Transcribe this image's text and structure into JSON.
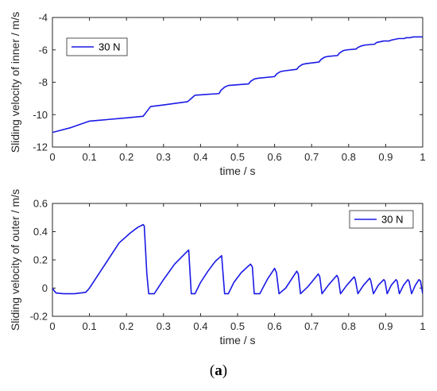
{
  "caption": {
    "paren_open": "(",
    "letter": "a",
    "paren_close": ")"
  },
  "colors": {
    "series": "#1a1ae6",
    "axis": "#262626",
    "background": "#ffffff",
    "legend_border": "#262626"
  },
  "chart_data": [
    {
      "type": "line",
      "title": "",
      "xlabel": "time / s",
      "ylabel": "Sliding velocity of inner / m/s",
      "xlim": [
        0,
        1
      ],
      "ylim": [
        -12,
        -4
      ],
      "xticks": [
        0,
        0.1,
        0.2,
        0.3,
        0.4,
        0.5,
        0.6,
        0.7,
        0.8,
        0.9,
        1
      ],
      "xtick_labels": [
        "0",
        "0.1",
        "0.2",
        "0.3",
        "0.4",
        "0.5",
        "0.6",
        "0.7",
        "0.8",
        "0.9",
        "1"
      ],
      "yticks": [
        -12,
        -10,
        -8,
        -6,
        -4
      ],
      "ytick_labels": [
        "-12",
        "-10",
        "-8",
        "-6",
        "-4"
      ],
      "grid": false,
      "legend_position": "top-left",
      "series": [
        {
          "name": "30 N",
          "x": [
            0,
            0.05,
            0.1,
            0.15,
            0.2,
            0.245,
            0.255,
            0.265,
            0.3,
            0.365,
            0.375,
            0.385,
            0.45,
            0.455,
            0.465,
            0.475,
            0.53,
            0.535,
            0.545,
            0.555,
            0.6,
            0.605,
            0.615,
            0.625,
            0.66,
            0.665,
            0.675,
            0.685,
            0.72,
            0.725,
            0.735,
            0.745,
            0.77,
            0.775,
            0.785,
            0.795,
            0.82,
            0.825,
            0.835,
            0.845,
            0.87,
            0.875,
            0.885,
            0.895,
            0.91,
            0.915,
            0.925,
            0.935,
            0.95,
            0.955,
            0.965,
            0.975,
            0.985,
            0.99,
            1.0
          ],
          "y": [
            -11.1,
            -10.8,
            -10.4,
            -10.3,
            -10.2,
            -10.1,
            -9.8,
            -9.5,
            -9.4,
            -9.2,
            -9.0,
            -8.8,
            -8.7,
            -8.5,
            -8.3,
            -8.2,
            -8.1,
            -7.95,
            -7.8,
            -7.75,
            -7.65,
            -7.5,
            -7.35,
            -7.3,
            -7.2,
            -7.05,
            -6.9,
            -6.85,
            -6.75,
            -6.6,
            -6.45,
            -6.4,
            -6.35,
            -6.2,
            -6.05,
            -6.0,
            -5.95,
            -5.85,
            -5.75,
            -5.7,
            -5.65,
            -5.55,
            -5.5,
            -5.45,
            -5.45,
            -5.4,
            -5.35,
            -5.3,
            -5.3,
            -5.25,
            -5.25,
            -5.2,
            -5.2,
            -5.2,
            -5.2
          ]
        }
      ]
    },
    {
      "type": "line",
      "title": "",
      "xlabel": "time / s",
      "ylabel": "Sliding velocity of outer / m/s",
      "xlim": [
        0,
        1
      ],
      "ylim": [
        -0.2,
        0.6
      ],
      "xticks": [
        0,
        0.1,
        0.2,
        0.3,
        0.4,
        0.5,
        0.6,
        0.7,
        0.8,
        0.9,
        1
      ],
      "xtick_labels": [
        "0",
        "0.1",
        "0.2",
        "0.3",
        "0.4",
        "0.5",
        "0.6",
        "0.7",
        "0.8",
        "0.9",
        "1"
      ],
      "yticks": [
        -0.2,
        0,
        0.2,
        0.4,
        0.6
      ],
      "ytick_labels": [
        "-0.2",
        "0",
        "0.2",
        "0.4",
        "0.6"
      ],
      "grid": false,
      "legend_position": "top-right",
      "series": [
        {
          "name": "30 N",
          "x": [
            0,
            0.005,
            0.01,
            0.03,
            0.06,
            0.09,
            0.1,
            0.12,
            0.15,
            0.18,
            0.21,
            0.23,
            0.245,
            0.248,
            0.255,
            0.26,
            0.275,
            0.3,
            0.33,
            0.36,
            0.368,
            0.375,
            0.385,
            0.4,
            0.42,
            0.44,
            0.457,
            0.465,
            0.475,
            0.49,
            0.51,
            0.535,
            0.54,
            0.545,
            0.56,
            0.58,
            0.6,
            0.605,
            0.612,
            0.63,
            0.66,
            0.664,
            0.67,
            0.69,
            0.718,
            0.722,
            0.728,
            0.745,
            0.768,
            0.772,
            0.778,
            0.795,
            0.815,
            0.818,
            0.825,
            0.84,
            0.857,
            0.86,
            0.867,
            0.88,
            0.895,
            0.898,
            0.904,
            0.915,
            0.928,
            0.931,
            0.937,
            0.948,
            0.96,
            0.963,
            0.97,
            0.98,
            0.99,
            0.994,
            1.0
          ],
          "y": [
            0.0,
            -0.02,
            -0.035,
            -0.04,
            -0.04,
            -0.03,
            0.0,
            0.08,
            0.2,
            0.32,
            0.39,
            0.43,
            0.45,
            0.44,
            0.1,
            -0.04,
            -0.04,
            0.06,
            0.17,
            0.25,
            0.27,
            -0.04,
            -0.04,
            0.04,
            0.12,
            0.19,
            0.23,
            -0.04,
            -0.04,
            0.04,
            0.11,
            0.17,
            0.15,
            -0.04,
            -0.04,
            0.06,
            0.14,
            0.11,
            -0.04,
            0.0,
            0.12,
            0.1,
            -0.04,
            0.01,
            0.1,
            0.08,
            -0.04,
            0.02,
            0.09,
            0.07,
            -0.04,
            0.02,
            0.08,
            0.06,
            -0.04,
            0.02,
            0.07,
            0.05,
            -0.04,
            0.02,
            0.06,
            0.05,
            -0.04,
            0.02,
            0.06,
            0.05,
            -0.04,
            0.02,
            0.06,
            0.05,
            -0.04,
            0.02,
            0.06,
            0.05,
            -0.04
          ]
        }
      ]
    }
  ]
}
